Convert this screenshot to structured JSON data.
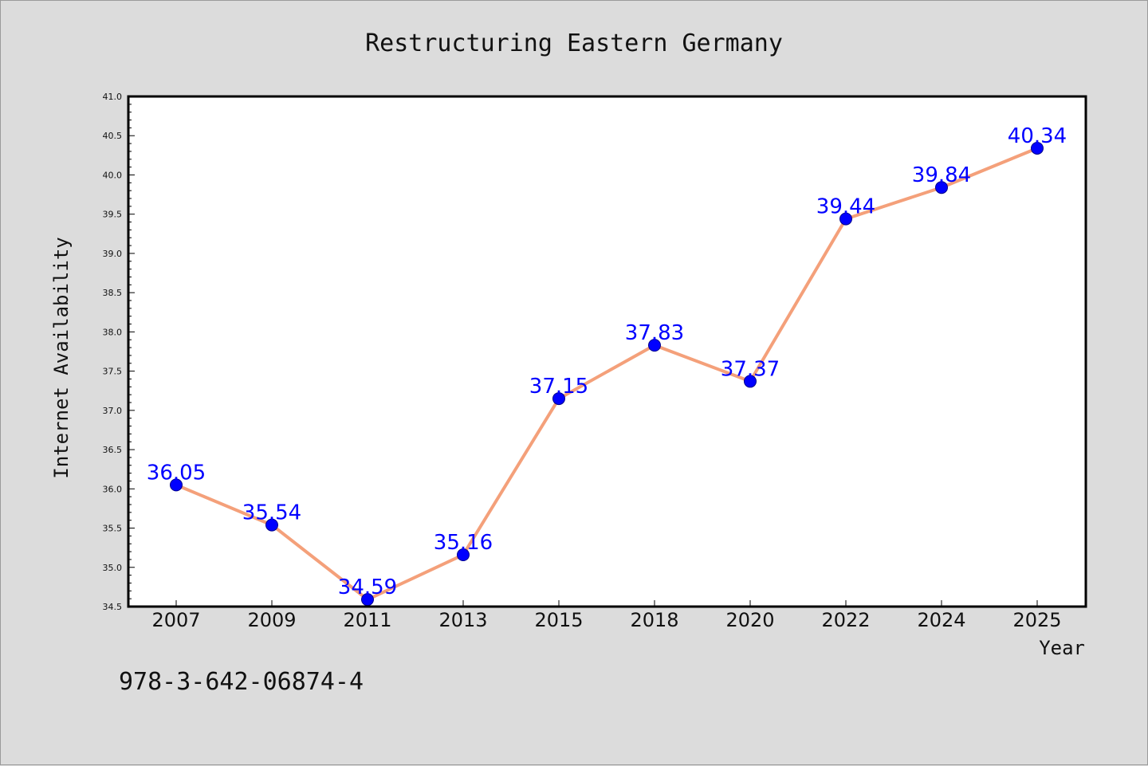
{
  "chart_data": {
    "type": "line",
    "title": "Restructuring Eastern Germany",
    "xlabel": "Year",
    "ylabel": "Internet Availability",
    "categories": [
      "2007",
      "2009",
      "2011",
      "2013",
      "2015",
      "2018",
      "2020",
      "2022",
      "2024",
      "2025"
    ],
    "series": [
      {
        "values": [
          36.05,
          35.54,
          34.59,
          35.16,
          37.15,
          37.83,
          37.37,
          39.44,
          39.84,
          40.34
        ],
        "labels": [
          "36.05",
          "35.54",
          "34.59",
          "35.16",
          "37.15",
          "37.83",
          "37.37",
          "39.44",
          "39.84",
          "40.34"
        ]
      }
    ],
    "ylim": [
      34.5,
      41.0
    ],
    "yticks": [
      "34.5",
      "35.0",
      "35.5",
      "36.0",
      "36.5",
      "37.0",
      "37.5",
      "38.0",
      "38.5",
      "39.0",
      "39.5",
      "40.0",
      "40.5",
      "41.0"
    ],
    "grid": false,
    "colors": {
      "line": "#f4a07a",
      "marker": "#0000ff",
      "label": "#0000ff",
      "background": "#dcdcdc",
      "plot_area": "#ffffff"
    }
  },
  "footnote": "978-3-642-06874-4"
}
